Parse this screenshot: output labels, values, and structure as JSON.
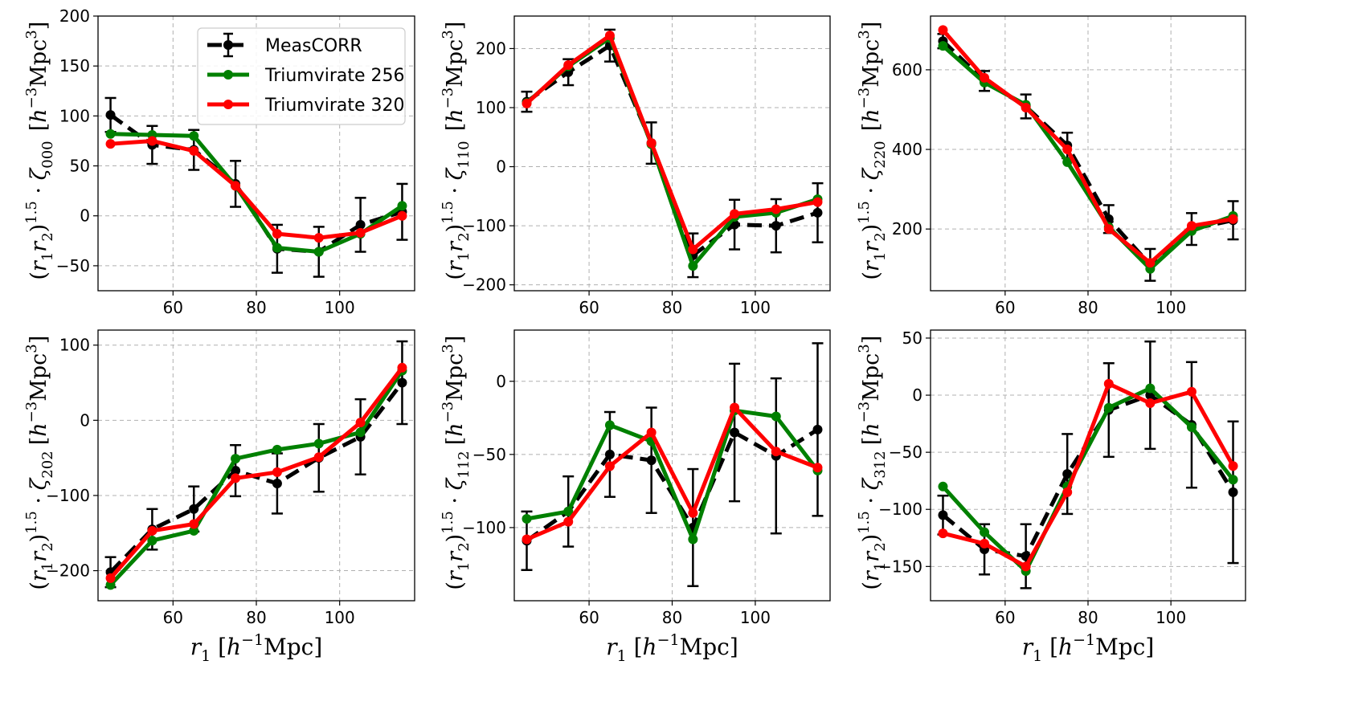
{
  "legend": {
    "entries": [
      {
        "label": "MeasCORR",
        "color": "#000000",
        "dashed": true
      },
      {
        "label": "Triumvirate 256",
        "color": "#008000",
        "dashed": false
      },
      {
        "label": "Triumvirate 320",
        "color": "#ff0000",
        "dashed": false
      }
    ],
    "placement": "upper-right of first panel"
  },
  "colors": {
    "meascorr": "#000000",
    "triumvirate_256": "#008000",
    "triumvirate_320": "#ff0000",
    "grid": "#b0b0b0"
  },
  "chart_data": [
    {
      "type": "line",
      "panel": "zeta000",
      "xlabel": "",
      "ylabel_left": "(r1 r2)^1.5 · ζ000",
      "ylabel_right": "[h^-3 Mpc^3]",
      "xlim": [
        42,
        118
      ],
      "ylim": [
        -75,
        200
      ],
      "xticks": [
        60,
        80,
        100
      ],
      "yticks": [
        -50,
        0,
        50,
        100,
        150,
        200
      ],
      "grid": true,
      "x": [
        45,
        55,
        65,
        75,
        85,
        95,
        105,
        115
      ],
      "series": [
        {
          "name": "MeasCORR",
          "values": [
            101,
            71,
            66,
            32,
            -33,
            -36,
            -9,
            4
          ],
          "errors": [
            17,
            19,
            20,
            23,
            24,
            25,
            27,
            28
          ]
        },
        {
          "name": "Triumvirate 256",
          "values": [
            82,
            81,
            80,
            30,
            -32,
            -36,
            -18,
            10
          ]
        },
        {
          "name": "Triumvirate 320",
          "values": [
            72,
            75,
            65,
            30,
            -18,
            -22,
            -17,
            0
          ]
        }
      ]
    },
    {
      "type": "line",
      "panel": "zeta110",
      "xlabel": "",
      "ylabel_left": "(r1 r2)^1.5 · ζ110",
      "ylabel_right": "[h^-3 Mpc^3]",
      "xlim": [
        42,
        118
      ],
      "ylim": [
        -210,
        255
      ],
      "xticks": [
        60,
        80,
        100
      ],
      "yticks": [
        -200,
        -100,
        0,
        100,
        200
      ],
      "grid": true,
      "x": [
        45,
        55,
        65,
        75,
        85,
        95,
        105,
        115
      ],
      "series": [
        {
          "name": "MeasCORR",
          "values": [
            110,
            160,
            205,
            40,
            -150,
            -98,
            -100,
            -78
          ],
          "errors": [
            17,
            22,
            27,
            35,
            37,
            42,
            45,
            50
          ]
        },
        {
          "name": "Triumvirate 256",
          "values": [
            108,
            170,
            218,
            38,
            -168,
            -85,
            -78,
            -55
          ]
        },
        {
          "name": "Triumvirate 320",
          "values": [
            107,
            172,
            222,
            40,
            -140,
            -80,
            -72,
            -60
          ]
        }
      ]
    },
    {
      "type": "line",
      "panel": "zeta220",
      "xlabel": "",
      "ylabel_left": "(r1 r2)^1.5 · ζ220",
      "ylabel_right": "[h^-3 Mpc^3]",
      "xlim": [
        42,
        118
      ],
      "ylim": [
        45,
        735
      ],
      "xticks": [
        60,
        80,
        100
      ],
      "yticks": [
        200,
        400,
        600
      ],
      "grid": true,
      "x": [
        45,
        55,
        65,
        75,
        85,
        95,
        105,
        115
      ],
      "series": [
        {
          "name": "MeasCORR",
          "values": [
            672,
            572,
            508,
            410,
            225,
            110,
            200,
            222
          ],
          "errors": [
            18,
            25,
            30,
            32,
            35,
            40,
            40,
            48
          ]
        },
        {
          "name": "Triumvirate 256",
          "values": [
            660,
            568,
            512,
            368,
            205,
            100,
            195,
            233
          ]
        },
        {
          "name": "Triumvirate 320",
          "values": [
            700,
            580,
            505,
            400,
            200,
            115,
            208,
            225
          ]
        }
      ]
    },
    {
      "type": "line",
      "panel": "zeta202",
      "xlabel": "r1 [h^-1 Mpc]",
      "ylabel_left": "(r1 r2)^1.5 · ζ202",
      "ylabel_right": "[h^-3 Mpc^3]",
      "xlim": [
        42,
        118
      ],
      "ylim": [
        -240,
        120
      ],
      "xticks": [
        60,
        80,
        100
      ],
      "yticks": [
        -200,
        -100,
        0,
        100
      ],
      "grid": true,
      "x": [
        45,
        55,
        65,
        75,
        85,
        95,
        105,
        115
      ],
      "series": [
        {
          "name": "MeasCORR",
          "values": [
            -202,
            -145,
            -118,
            -67,
            -84,
            -50,
            -22,
            50
          ],
          "errors": [
            20,
            27,
            30,
            34,
            40,
            45,
            50,
            55
          ]
        },
        {
          "name": "Triumvirate 256",
          "values": [
            -219,
            -160,
            -147,
            -51,
            -39,
            -31,
            -16,
            66
          ]
        },
        {
          "name": "Triumvirate 320",
          "values": [
            -210,
            -147,
            -138,
            -77,
            -69,
            -49,
            -3,
            70
          ]
        }
      ]
    },
    {
      "type": "line",
      "panel": "zeta112",
      "xlabel": "r1 [h^-1 Mpc]",
      "ylabel_left": "(r1 r2)^1.5 · ζ112",
      "ylabel_right": "[h^-3 Mpc^3]",
      "xlim": [
        42,
        118
      ],
      "ylim": [
        -150,
        35
      ],
      "xticks": [
        60,
        80,
        100
      ],
      "yticks": [
        -100,
        -50,
        0
      ],
      "grid": true,
      "x": [
        45,
        55,
        65,
        75,
        85,
        95,
        105,
        115
      ],
      "series": [
        {
          "name": "MeasCORR",
          "values": [
            -109,
            -89,
            -50,
            -54,
            -100,
            -35,
            -51,
            -33
          ],
          "errors": [
            20,
            24,
            29,
            36,
            40,
            47,
            53,
            59
          ]
        },
        {
          "name": "Triumvirate 256",
          "values": [
            -94,
            -89,
            -30,
            -41,
            -108,
            -20,
            -24,
            -61
          ]
        },
        {
          "name": "Triumvirate 320",
          "values": [
            -108,
            -96,
            -58,
            -35,
            -90,
            -18,
            -48,
            -59
          ]
        }
      ]
    },
    {
      "type": "line",
      "panel": "zeta312",
      "xlabel": "r1 [h^-1 Mpc]",
      "ylabel_left": "(r1 r2)^1.5 · ζ312",
      "ylabel_right": "[h^-3 Mpc^3]",
      "xlim": [
        42,
        118
      ],
      "ylim": [
        -180,
        57
      ],
      "xticks": [
        60,
        80,
        100
      ],
      "yticks": [
        -150,
        -100,
        -50,
        0,
        50
      ],
      "grid": true,
      "x": [
        45,
        55,
        65,
        75,
        85,
        95,
        105,
        115
      ],
      "series": [
        {
          "name": "MeasCORR",
          "values": [
            -105,
            -135,
            -141,
            -69,
            -13,
            0,
            -26,
            -85
          ],
          "errors": [
            17,
            22,
            28,
            35,
            41,
            47,
            55,
            62
          ]
        },
        {
          "name": "Triumvirate 256",
          "values": [
            -80,
            -120,
            -154,
            -80,
            -11,
            6,
            -28,
            -74
          ]
        },
        {
          "name": "Triumvirate 320",
          "values": [
            -121,
            -130,
            -150,
            -85,
            10,
            -7,
            3,
            -62
          ]
        }
      ]
    }
  ]
}
